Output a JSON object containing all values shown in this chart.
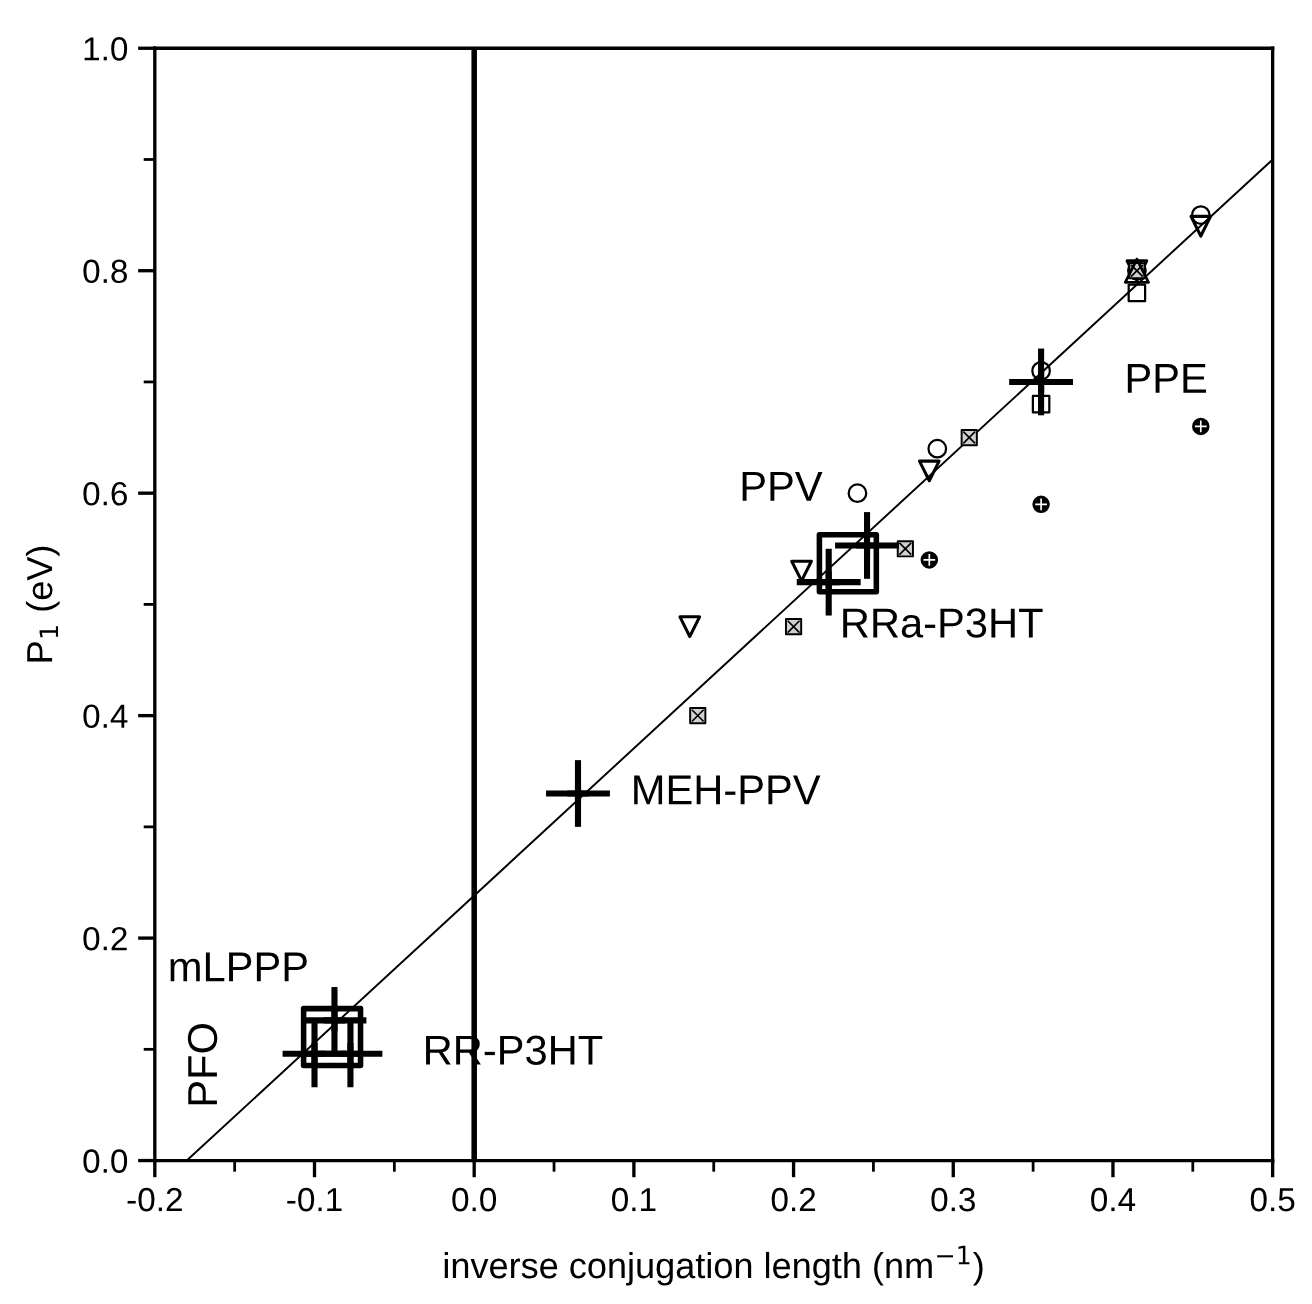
{
  "chart_data": {
    "type": "scatter",
    "xlabel": "inverse conjugation length (nm$^{−1}$)",
    "ylabel": "P$_{1}$ (eV)",
    "xlim": [
      -0.2,
      0.5
    ],
    "ylim": [
      0.0,
      1.0
    ],
    "xticks": [
      -0.2,
      -0.1,
      {
        "value": 0,
        "label": "0.0"
      },
      0.1,
      0.2,
      0.3,
      0.4,
      0.5
    ],
    "yticks": [
      {
        "value": 0,
        "label": "0.0"
      },
      0.2,
      0.4,
      0.6,
      0.8,
      {
        "value": 1,
        "label": "1.0"
      }
    ],
    "grid": false,
    "legend": false,
    "series": [
      {
        "color": "#000000",
        "marker": "circle",
        "x": [
          0.24,
          0.29,
          0.355,
          0.415,
          0.455
        ],
        "values": [
          0.6,
          0.64,
          0.71,
          0.8,
          0.85
        ]
      },
      {
        "color": "#000000",
        "marker": "triangle",
        "x": [
          0.135,
          0.205,
          0.285,
          0.415,
          0.455
        ],
        "values": [
          0.48,
          0.53,
          0.62,
          0.8,
          0.84
        ]
      },
      {
        "color": "#000000",
        "x": [
          0.415
        ],
        "values": [
          0.8
        ]
      },
      {
        "color": "#000000",
        "marker": "square",
        "x": [
          0.355,
          0.415
        ],
        "values": [
          0.68,
          0.78
        ]
      },
      {
        "color": "#000000",
        "marker": "square",
        "x": [
          0.14,
          0.2,
          0.27,
          0.31,
          0.415
        ],
        "values": [
          0.4,
          0.48,
          0.55,
          0.65,
          0.8
        ]
      },
      {
        "color": "#000000",
        "marker": "circle",
        "x": [
          0.285,
          0.355,
          0.455
        ],
        "values": [
          0.54,
          0.59,
          0.66
        ]
      },
      {
        "color": "#000000",
        "marker": "cross",
        "x": [
          -0.1,
          -0.0775,
          -0.0875,
          0.065,
          0.222,
          0.246,
          0.355
        ],
        "values": [
          0.096,
          0.096,
          0.126,
          0.33,
          0.52,
          0.553,
          0.7
        ],
        "errors": [
          0.03,
          0.03,
          0.03,
          0.03,
          0.03,
          0.03,
          0.03
        ],
        "xerrors": [
          0.02,
          0.02,
          0.02,
          0.02,
          0.02,
          0.02,
          0.02
        ]
      },
      {
        "color": "#000000",
        "marker": "square",
        "x": [
          -0.089,
          0.234
        ],
        "values": [
          0.111,
          0.537
        ]
      },
      {
        "type": "line",
        "color": "#000000",
        "marker": "none",
        "line_style": "solid",
        "x": [
          -0.18,
          0.5
        ],
        "values": [
          0.0,
          0.9
        ]
      }
    ],
    "ref_lines": [
      {
        "axis": "x",
        "value": 0.0,
        "color": "#000000",
        "line_style": "solid"
      }
    ],
    "annotations": [
      {
        "text": "PPV",
        "x": 0.246,
        "y": 0.553
      },
      {
        "text": "RRa-P3HT",
        "x": 0.222,
        "y": 0.52
      },
      {
        "text": "PPE",
        "x": 0.355,
        "y": 0.7
      },
      {
        "text": "MEH-PPV",
        "x": 0.065,
        "y": 0.33
      },
      {
        "text": "mLPPP",
        "x": -0.0875,
        "y": 0.126
      },
      {
        "text": "PFO",
        "x": -0.1,
        "y": 0.096
      },
      {
        "text": "RR-P3HT",
        "x": -0.0775,
        "y": 0.096
      }
    ]
  }
}
